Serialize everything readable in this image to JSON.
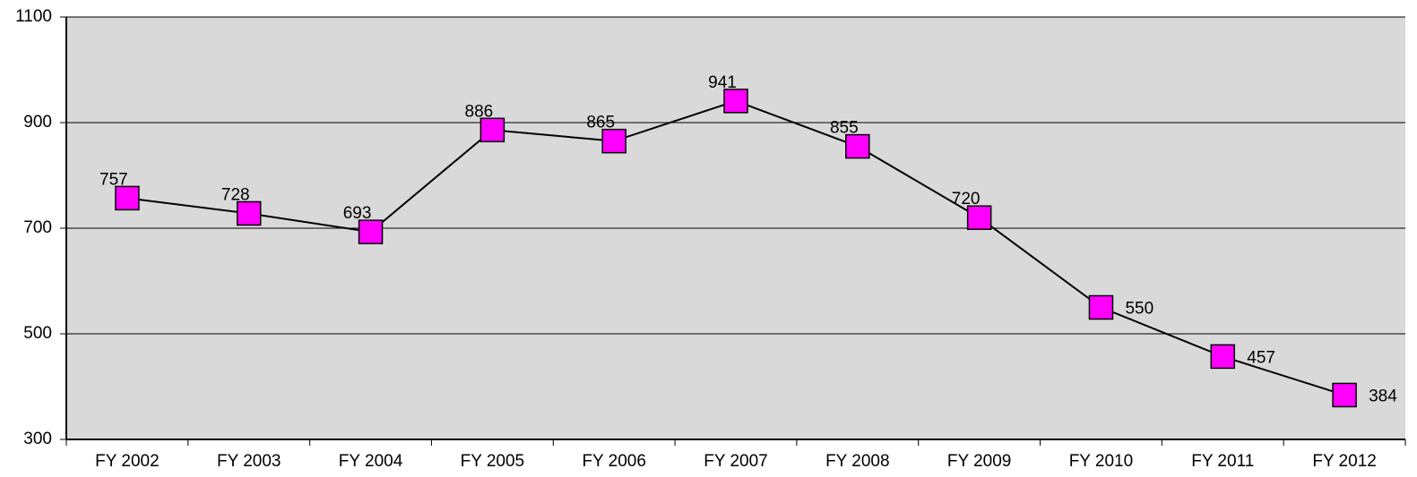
{
  "chart_data": {
    "type": "line",
    "categories": [
      "FY 2002",
      "FY 2003",
      "FY 2004",
      "FY 2005",
      "FY 2006",
      "FY 2007",
      "FY 2008",
      "FY 2009",
      "FY 2010",
      "FY 2011",
      "FY 2012"
    ],
    "values": [
      757,
      728,
      693,
      886,
      865,
      941,
      855,
      720,
      550,
      457,
      384
    ],
    "color": "#ff00ff",
    "line_color": "#000000",
    "plot_background": "#d9d9d9",
    "ylim": [
      300,
      1100
    ],
    "yticks": [
      300,
      500,
      700,
      900,
      1100
    ],
    "grid": true
  }
}
